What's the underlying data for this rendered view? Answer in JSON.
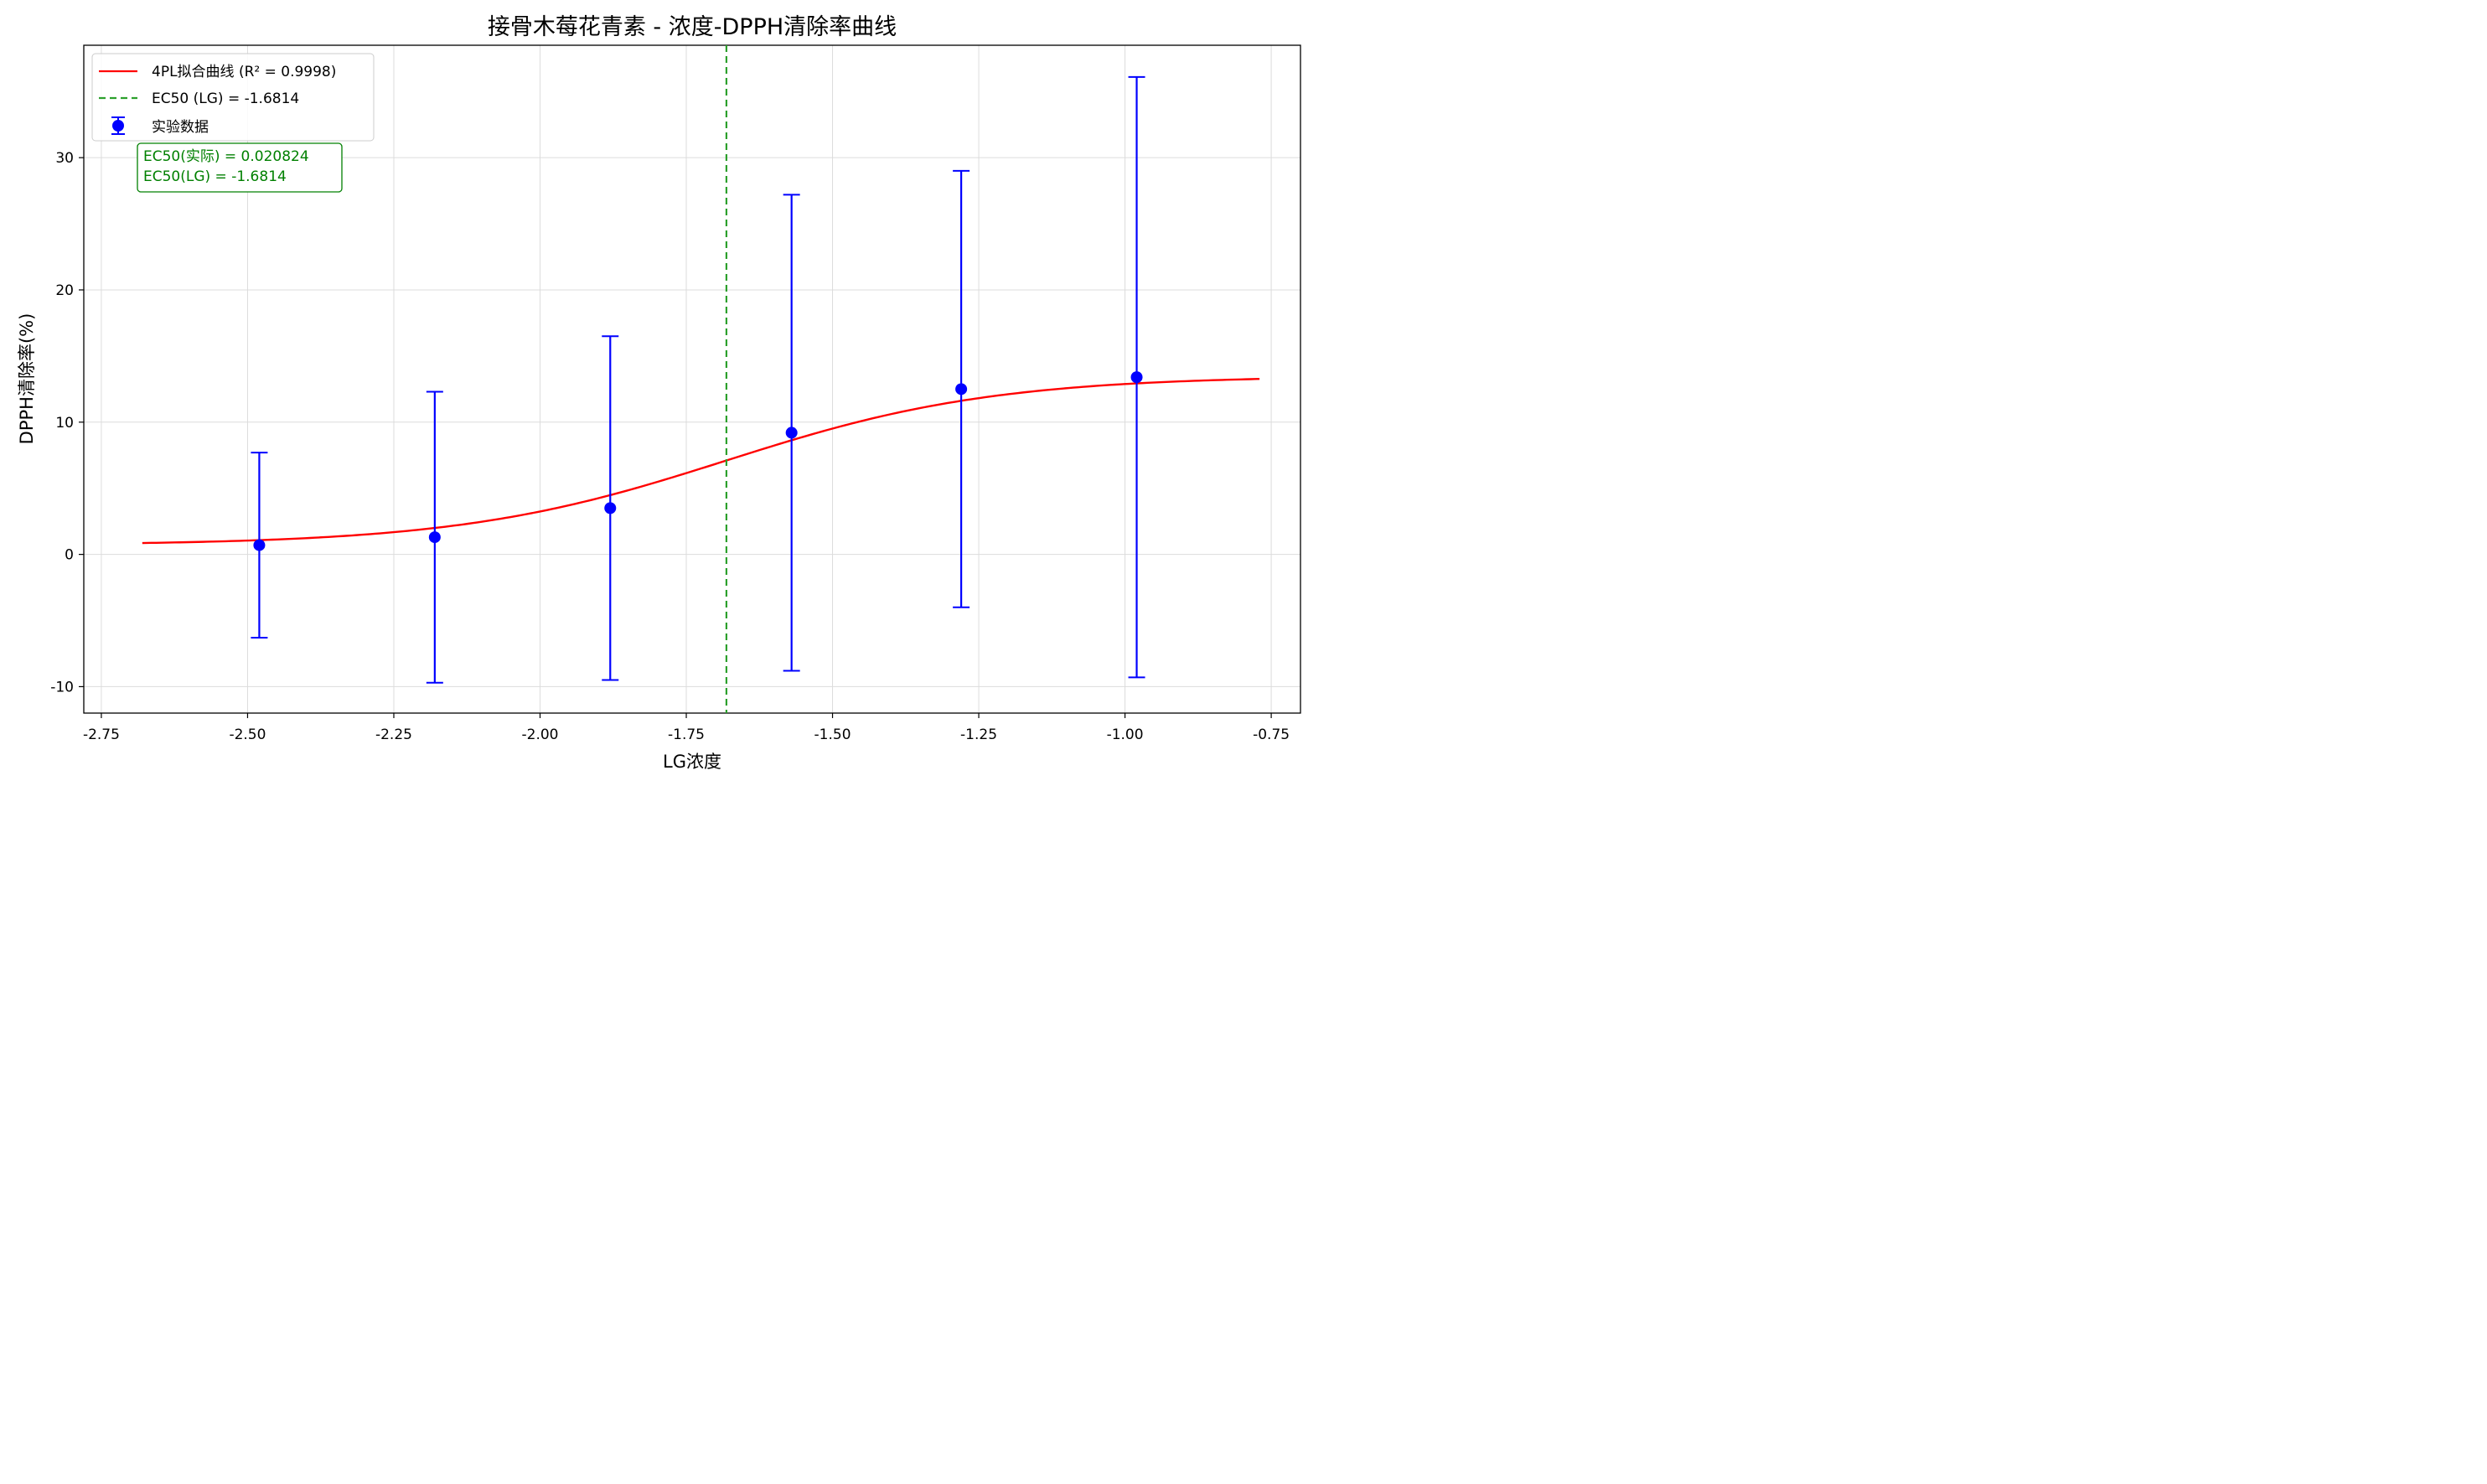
{
  "chart_data": {
    "type": "scatter",
    "title": "接骨木莓花青素 - 浓度-DPPH清除率曲线",
    "xlabel": "LG浓度",
    "ylabel": "DPPH清除率(%)",
    "xlim": [
      -2.78,
      -0.7
    ],
    "ylim": [
      -12,
      38.5
    ],
    "x_ticks": [
      -2.75,
      -2.5,
      -2.25,
      -2.0,
      -1.75,
      -1.5,
      -1.25,
      -1.0,
      -0.75
    ],
    "x_tick_labels": [
      "-2.75",
      "-2.50",
      "-2.25",
      "-2.00",
      "-1.75",
      "-1.50",
      "-1.25",
      "-1.00",
      "-0.75"
    ],
    "y_ticks": [
      -10,
      0,
      10,
      20,
      30
    ],
    "y_tick_labels": [
      "-10",
      "0",
      "10",
      "20",
      "30"
    ],
    "grid": true,
    "legend_position": "top-left",
    "series": [
      {
        "name": "4PL拟合曲线 (R² = 0.9998)",
        "kind": "line",
        "color": "#ff0000",
        "model": {
          "bottom": 0.7,
          "top": 13.5,
          "ec50_log": -1.6814,
          "hill_slope": 1.9
        },
        "x_range": [
          -2.68,
          -0.77
        ]
      },
      {
        "name": "EC50 (LG) = -1.6814",
        "kind": "vline",
        "color": "#2ca02c",
        "x": -1.6814,
        "dashed": true
      },
      {
        "name": "实验数据",
        "kind": "errorbar",
        "color": "#0000ff",
        "x": [
          -2.48,
          -2.18,
          -1.88,
          -1.57,
          -1.28,
          -0.98
        ],
        "y": [
          0.7,
          1.3,
          3.5,
          9.2,
          12.5,
          13.4
        ],
        "yerr": [
          7.0,
          11.0,
          13.0,
          18.0,
          16.5,
          22.7
        ]
      }
    ],
    "annotation": {
      "lines": [
        "EC50(实际) = 0.020824",
        "EC50(LG) = -1.6814"
      ],
      "color": "#008000"
    }
  }
}
